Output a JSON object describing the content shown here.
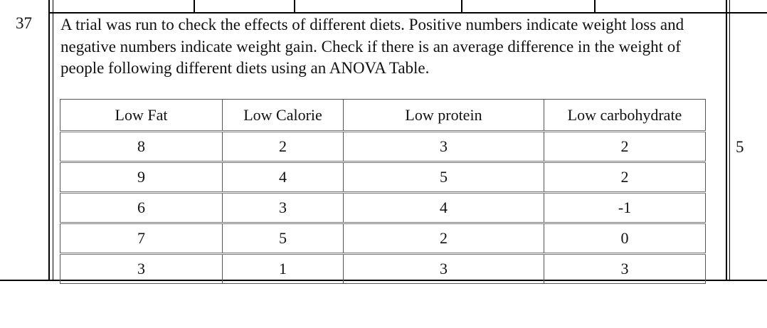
{
  "question": {
    "number": "37",
    "text": "A trial was run to check the effects of different diets. Positive numbers indicate weight loss and negative numbers indicate weight gain. Check if there is an average difference in the weight of people following different diets using an ANOVA Table.",
    "marks": "5"
  },
  "table": {
    "headers": [
      "Low Fat",
      "Low Calorie",
      "Low protein",
      "Low carbohydrate"
    ],
    "rows": [
      [
        "8",
        "2",
        "3",
        "2"
      ],
      [
        "9",
        "4",
        "5",
        "2"
      ],
      [
        "6",
        "3",
        "4",
        "-1"
      ],
      [
        "7",
        "5",
        "2",
        "0"
      ],
      [
        "3",
        "1",
        "3",
        "3"
      ]
    ]
  }
}
